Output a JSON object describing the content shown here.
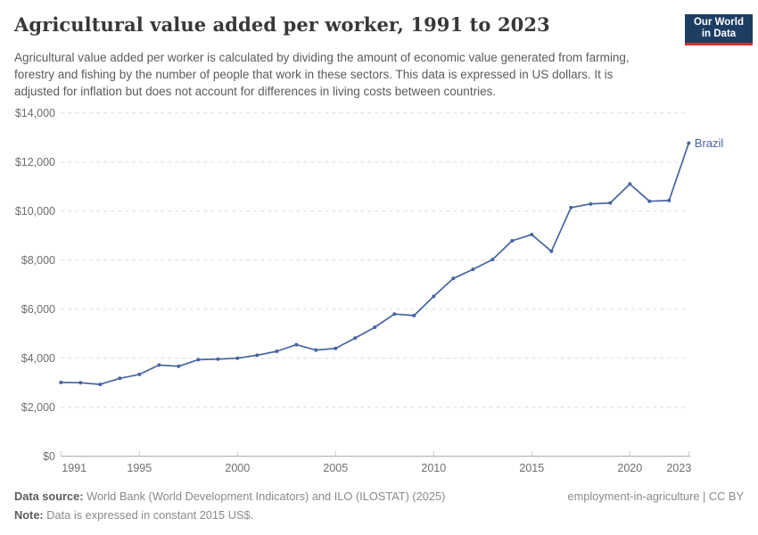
{
  "header": {
    "title": "Agricultural value added per worker, 1991 to 2023",
    "subtitle": "Agricultural value added per worker is calculated by dividing the amount of economic value generated from farming, forestry and fishing by the number of people that work in these sectors. This data is expressed in US dollars. It is adjusted for inflation but does not account for differences in living costs between countries.",
    "logo": {
      "line1": "Our World",
      "line2": "in Data",
      "bg_color": "#1d3d63",
      "accent_color": "#d0342c"
    }
  },
  "chart_data": {
    "type": "line",
    "title": "Agricultural value added per worker, 1991 to 2023",
    "xlabel": "",
    "ylabel": "",
    "xlim": [
      1991,
      2023
    ],
    "ylim": [
      0,
      14000
    ],
    "grid": "horizontal-dashed",
    "legend_position": "end-of-line-label",
    "x_ticks": [
      1991,
      1995,
      2000,
      2005,
      2010,
      2015,
      2020,
      2023
    ],
    "y_ticks": [
      0,
      2000,
      4000,
      6000,
      8000,
      10000,
      12000,
      14000
    ],
    "y_tick_labels": [
      "$0",
      "$2,000",
      "$4,000",
      "$6,000",
      "$8,000",
      "$10,000",
      "$12,000",
      "$14,000"
    ],
    "end_label": "Brazil",
    "series": [
      {
        "name": "Brazil",
        "color": "#4664a0",
        "x": [
          1991,
          1992,
          1993,
          1994,
          1995,
          1996,
          1997,
          1998,
          1999,
          2000,
          2001,
          2002,
          2003,
          2004,
          2005,
          2006,
          2007,
          2008,
          2009,
          2010,
          2011,
          2012,
          2013,
          2014,
          2015,
          2016,
          2017,
          2018,
          2019,
          2020,
          2021,
          2022,
          2023
        ],
        "values": [
          3010,
          3000,
          2930,
          3180,
          3340,
          3720,
          3670,
          3940,
          3960,
          4000,
          4120,
          4280,
          4550,
          4330,
          4400,
          4820,
          5260,
          5800,
          5740,
          6520,
          7250,
          7620,
          8020,
          8790,
          9040,
          8360,
          10140,
          10290,
          10330,
          11100,
          10400,
          10430,
          12770
        ]
      }
    ]
  },
  "footer": {
    "source_label": "Data source:",
    "source_text": "World Bank (World Development Indicators) and ILO (ILOSTAT) (2025)",
    "credit": "employment-in-agriculture | CC BY",
    "note_label": "Note:",
    "note_text": "Data is expressed in constant 2015 US$."
  }
}
